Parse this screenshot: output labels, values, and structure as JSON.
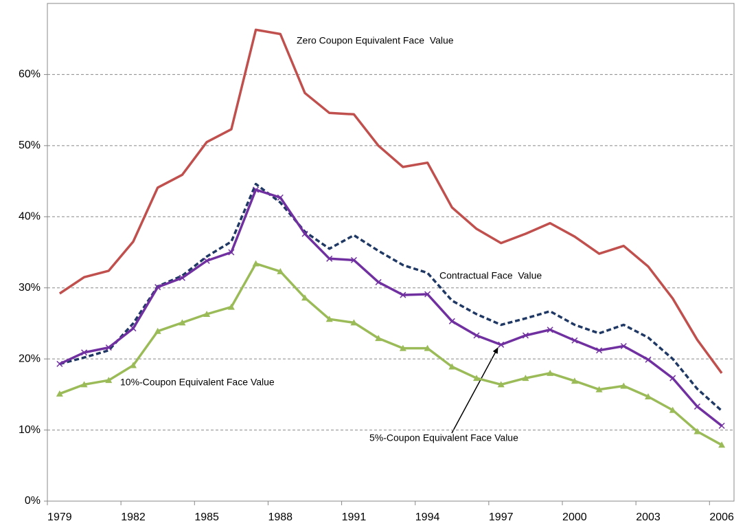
{
  "chart_data": {
    "type": "line",
    "categories": [
      1979,
      null,
      null,
      1982,
      null,
      null,
      1985,
      null,
      null,
      1988,
      null,
      null,
      1991,
      null,
      null,
      1994,
      null,
      null,
      1997,
      null,
      null,
      2000,
      null,
      null,
      2003,
      null,
      null,
      2006
    ],
    "ylim": [
      0,
      70
    ],
    "yticks": [
      {
        "value": 0,
        "label": "0%"
      },
      {
        "value": 10,
        "label": "10%"
      },
      {
        "value": 20,
        "label": "20%"
      },
      {
        "value": 30,
        "label": "30%"
      },
      {
        "value": 40,
        "label": "40%"
      },
      {
        "value": 50,
        "label": "50%"
      },
      {
        "value": 60,
        "label": "60%"
      }
    ],
    "grid": true,
    "series": [
      {
        "name": "Zero Coupon Equivalent Face  Value",
        "color": "#c0504d",
        "marker": "none",
        "dash": false,
        "values": [
          29.2,
          31.5,
          32.4,
          36.5,
          44.1,
          45.9,
          50.5,
          52.3,
          66.3,
          65.7,
          57.4,
          54.6,
          54.4,
          50.0,
          47.0,
          47.6,
          41.3,
          38.3,
          36.3,
          37.6,
          39.1,
          37.2,
          34.8,
          35.9,
          33.0,
          28.5,
          22.7,
          18.0
        ]
      },
      {
        "name": "Contractual Face  Value",
        "color": "#1f3864",
        "marker": "none",
        "dash": true,
        "values": [
          19.3,
          20.2,
          21.2,
          25.0,
          30.2,
          31.7,
          34.4,
          36.5,
          44.6,
          42.0,
          37.9,
          35.5,
          37.4,
          35.2,
          33.2,
          32.1,
          28.2,
          26.3,
          24.8,
          25.7,
          26.7,
          24.8,
          23.6,
          24.8,
          23.0,
          20.0,
          15.8,
          12.7
        ]
      },
      {
        "name": "5%-Coupon Equivalent Face Value",
        "color": "#7030a0",
        "marker": "x",
        "dash": false,
        "values": [
          19.3,
          20.9,
          21.6,
          24.3,
          30.1,
          31.4,
          33.8,
          35.0,
          43.8,
          42.7,
          37.6,
          34.1,
          33.9,
          30.8,
          29.0,
          29.1,
          25.3,
          23.3,
          22.0,
          23.3,
          24.1,
          22.6,
          21.2,
          21.8,
          19.9,
          17.3,
          13.3,
          10.6
        ]
      },
      {
        "name": "10%-Coupon Equivalent Face Value",
        "color": "#9bbb59",
        "marker": "triangle",
        "dash": false,
        "values": [
          15.1,
          16.4,
          17.0,
          19.1,
          23.9,
          25.1,
          26.3,
          27.3,
          33.4,
          32.3,
          28.6,
          25.6,
          25.1,
          22.9,
          21.5,
          21.5,
          18.9,
          17.3,
          16.4,
          17.3,
          18.0,
          16.9,
          15.7,
          16.2,
          14.7,
          12.8,
          9.8,
          7.9
        ]
      }
    ]
  }
}
